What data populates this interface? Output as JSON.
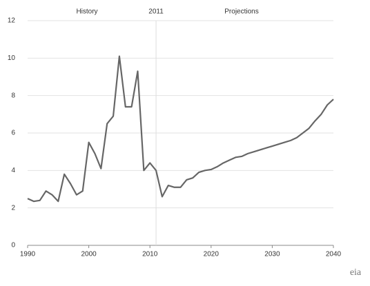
{
  "chart_data": {
    "type": "line",
    "annotations": {
      "history": "History",
      "projections": "Projections"
    },
    "divider": 2011,
    "x": [
      1990,
      1991,
      1992,
      1993,
      1994,
      1995,
      1996,
      1997,
      1998,
      1999,
      2000,
      2001,
      2002,
      2003,
      2004,
      2005,
      2006,
      2007,
      2008,
      2009,
      2010,
      2011,
      2012,
      2013,
      2014,
      2015,
      2016,
      2017,
      2018,
      2019,
      2020,
      2021,
      2022,
      2023,
      2024,
      2025,
      2026,
      2027,
      2028,
      2029,
      2030,
      2031,
      2032,
      2033,
      2034,
      2035,
      2036,
      2037,
      2038,
      2039,
      2040
    ],
    "series": [
      {
        "color": "#666666",
        "values": [
          2.5,
          2.35,
          2.4,
          2.9,
          2.7,
          2.35,
          3.8,
          3.3,
          2.7,
          2.9,
          5.5,
          4.9,
          4.1,
          6.5,
          6.9,
          10.1,
          7.4,
          7.4,
          9.3,
          4.0,
          4.4,
          4.0,
          2.6,
          3.2,
          3.1,
          3.1,
          3.5,
          3.6,
          3.9,
          4.0,
          4.05,
          4.2,
          4.4,
          4.55,
          4.7,
          4.75,
          4.9,
          5.0,
          5.1,
          5.2,
          5.3,
          5.4,
          5.5,
          5.6,
          5.75,
          6.0,
          6.25,
          6.65,
          7.0,
          7.5,
          7.8
        ]
      }
    ],
    "xlim": [
      1990,
      2040
    ],
    "xticks": [
      1990,
      2000,
      2010,
      2020,
      2030,
      2040
    ],
    "ylim": [
      0,
      12
    ],
    "yticks": [
      0,
      2,
      4,
      6,
      8,
      10,
      12
    ],
    "grid": true
  },
  "logo": "eia"
}
